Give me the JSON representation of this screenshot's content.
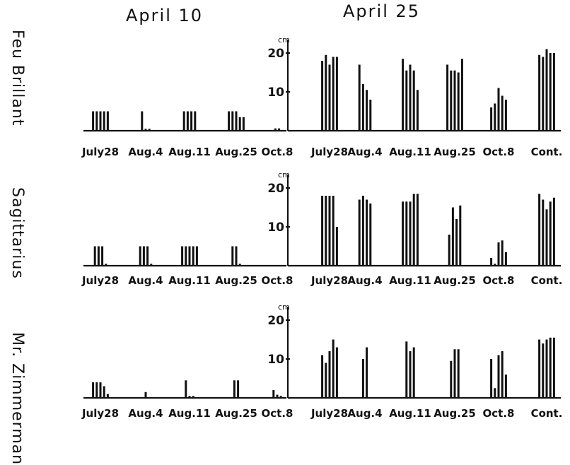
{
  "figure": {
    "headers": {
      "left": "April 10",
      "right": "April 25"
    }
  },
  "chart_data": [
    {
      "type": "bar",
      "title": "Feu Brillant",
      "subtitle_left": "April 10",
      "subtitle_right": "April 25",
      "y_unit": "cm",
      "yticks": [
        "20",
        "10"
      ],
      "ylim": [
        0,
        22
      ],
      "groups_left": [
        {
          "label": "July28",
          "values": [
            5,
            5,
            5,
            5,
            5
          ]
        },
        {
          "label": "Aug.4",
          "values": [
            5,
            0.5,
            0.5
          ]
        },
        {
          "label": "Aug.11",
          "values": [
            5,
            5,
            5,
            5
          ]
        },
        {
          "label": "Aug.25",
          "values": [
            5,
            5,
            5,
            3.5,
            3.5
          ]
        },
        {
          "label": "Oct.8",
          "values": [
            0.6,
            0.6
          ]
        }
      ],
      "groups_right": [
        {
          "label": "July28",
          "values": [
            18,
            19.5,
            17,
            19,
            19
          ]
        },
        {
          "label": "Aug.4",
          "values": [
            17,
            12,
            10.5,
            8
          ]
        },
        {
          "label": "Aug.11",
          "values": [
            18.5,
            15.5,
            17,
            15.5,
            10.5
          ]
        },
        {
          "label": "Aug.25",
          "values": [
            17,
            15.5,
            15.5,
            15,
            18.5
          ]
        },
        {
          "label": "Oct.8",
          "values": [
            6,
            7,
            11,
            9,
            8
          ]
        },
        {
          "label": "Cont.",
          "values": [
            19.5,
            19,
            21,
            20,
            20
          ]
        }
      ]
    },
    {
      "type": "bar",
      "title": "Sagittarius",
      "y_unit": "cm",
      "yticks": [
        "20",
        "10"
      ],
      "ylim": [
        0,
        22
      ],
      "groups_left": [
        {
          "label": "July28",
          "values": [
            5,
            5,
            5,
            0.5
          ]
        },
        {
          "label": "Aug.4",
          "values": [
            5,
            5,
            5,
            0.5
          ]
        },
        {
          "label": "Aug.11",
          "values": [
            5,
            5,
            5,
            5,
            5
          ]
        },
        {
          "label": "Aug.25",
          "values": [
            5,
            5,
            0.5
          ]
        },
        {
          "label": "Oct.8",
          "values": []
        }
      ],
      "groups_right": [
        {
          "label": "July28",
          "values": [
            18,
            18,
            18,
            18,
            10
          ]
        },
        {
          "label": "Aug.4",
          "values": [
            17,
            18,
            17,
            16
          ]
        },
        {
          "label": "Aug.11",
          "values": [
            16.5,
            16.5,
            16.5,
            18.5,
            18.5
          ]
        },
        {
          "label": "Aug.25",
          "values": [
            8,
            15,
            12,
            15.5
          ]
        },
        {
          "label": "Oct.8",
          "values": [
            2,
            0.5,
            6,
            6.5,
            3.5
          ]
        },
        {
          "label": "Cont.",
          "values": [
            18.5,
            17,
            14.5,
            16.5,
            17.5
          ]
        }
      ]
    },
    {
      "type": "bar",
      "title": "Mr. Zimmerman",
      "y_unit": "cm",
      "yticks": [
        "20",
        "10"
      ],
      "ylim": [
        0,
        22
      ],
      "groups_left": [
        {
          "label": "July28",
          "values": [
            4,
            4,
            4,
            3,
            1
          ]
        },
        {
          "label": "Aug.4",
          "values": [
            1.5
          ]
        },
        {
          "label": "Aug.11",
          "values": [
            4.5,
            0.5,
            0.5
          ]
        },
        {
          "label": "Aug.25",
          "values": [
            4.5,
            4.5
          ]
        },
        {
          "label": "Oct.8",
          "values": [
            2,
            0.8,
            0.5
          ]
        }
      ],
      "groups_right": [
        {
          "label": "July28",
          "values": [
            11,
            9,
            12,
            15,
            13
          ]
        },
        {
          "label": "Aug.4",
          "values": [
            10,
            13
          ]
        },
        {
          "label": "Aug.11",
          "values": [
            14.5,
            12,
            13
          ]
        },
        {
          "label": "Aug.25",
          "values": [
            9.5,
            12.5,
            12.5
          ]
        },
        {
          "label": "Oct.8",
          "values": [
            10,
            2.5,
            11,
            12,
            6
          ]
        },
        {
          "label": "Cont.",
          "values": [
            15,
            14,
            15,
            15.5,
            15.5
          ]
        }
      ]
    }
  ]
}
